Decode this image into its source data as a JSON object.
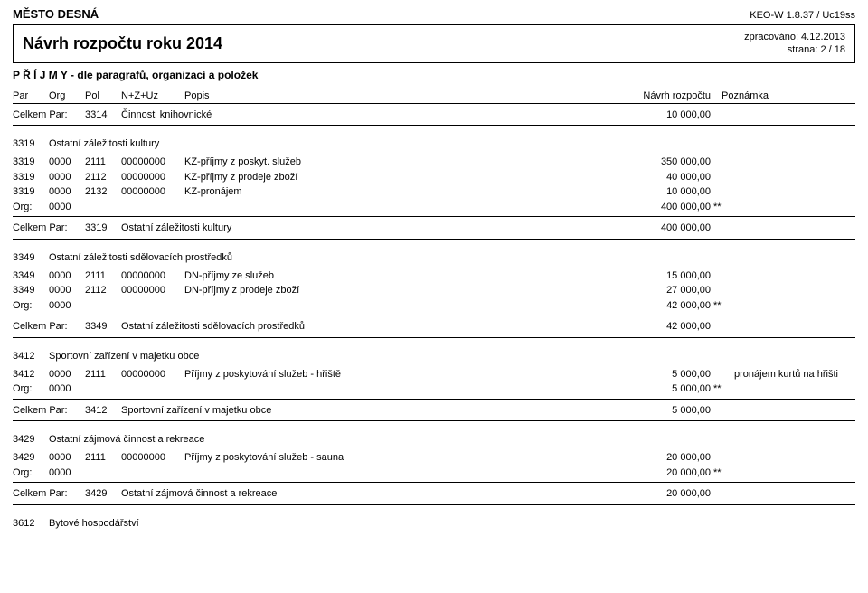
{
  "header": {
    "city": "MĚSTO DESNÁ",
    "app_id": "KEO-W 1.8.37 / Uc19ss"
  },
  "title_box": {
    "title": "Návrh rozpočtu roku 2014",
    "processed": "zpracováno: 4.12.2013",
    "page": "strana: 2 / 18"
  },
  "subtitle": "P Ř Í J M Y - dle paragrafů, organizací a položek",
  "col_headers": {
    "par": "Par",
    "org": "Org",
    "pol": "Pol",
    "nzuz": "N+Z+Uz",
    "popis": "Popis",
    "navrh": "Návrh rozpočtu",
    "pozn": "Poznámka"
  },
  "top_sum": {
    "pre": "Celkem Par:",
    "code": "3314",
    "txt": "Činnosti knihovnické",
    "amount": "10 000,00"
  },
  "sections": [
    {
      "code": "3319",
      "title": "Ostatní záležitosti kultury",
      "rows": [
        {
          "par": "3319",
          "org": "0000",
          "pol": "2111",
          "nzuz": "00000000",
          "popis": "KZ-příjmy z poskyt. služeb",
          "amount": "350 000,00",
          "stars": "",
          "note": ""
        },
        {
          "par": "3319",
          "org": "0000",
          "pol": "2112",
          "nzuz": "00000000",
          "popis": "KZ-příjmy z prodeje zboží",
          "amount": "40 000,00",
          "stars": "",
          "note": ""
        },
        {
          "par": "3319",
          "org": "0000",
          "pol": "2132",
          "nzuz": "00000000",
          "popis": "KZ-pronájem",
          "amount": "10 000,00",
          "stars": "",
          "note": ""
        },
        {
          "par": "Org:",
          "org": "0000",
          "pol": "",
          "nzuz": "",
          "popis": "",
          "amount": "400 000,00",
          "stars": "**",
          "note": ""
        }
      ],
      "sum": {
        "pre": "Celkem Par:",
        "code": "3319",
        "txt": "Ostatní záležitosti kultury",
        "amount": "400 000,00"
      }
    },
    {
      "code": "3349",
      "title": "Ostatní záležitosti sdělovacích prostředků",
      "rows": [
        {
          "par": "3349",
          "org": "0000",
          "pol": "2111",
          "nzuz": "00000000",
          "popis": "DN-příjmy ze služeb",
          "amount": "15 000,00",
          "stars": "",
          "note": ""
        },
        {
          "par": "3349",
          "org": "0000",
          "pol": "2112",
          "nzuz": "00000000",
          "popis": "DN-příjmy z prodeje zboží",
          "amount": "27 000,00",
          "stars": "",
          "note": ""
        },
        {
          "par": "Org:",
          "org": "0000",
          "pol": "",
          "nzuz": "",
          "popis": "",
          "amount": "42 000,00",
          "stars": "**",
          "note": ""
        }
      ],
      "sum": {
        "pre": "Celkem Par:",
        "code": "3349",
        "txt": "Ostatní záležitosti sdělovacích prostředků",
        "amount": "42 000,00"
      }
    },
    {
      "code": "3412",
      "title": "Sportovní zařízení v majetku obce",
      "rows": [
        {
          "par": "3412",
          "org": "0000",
          "pol": "2111",
          "nzuz": "00000000",
          "popis": "Příjmy z poskytování služeb - hřiště",
          "amount": "5 000,00",
          "stars": "",
          "note": "pronájem kurtů na hřišti"
        },
        {
          "par": "Org:",
          "org": "0000",
          "pol": "",
          "nzuz": "",
          "popis": "",
          "amount": "5 000,00",
          "stars": "**",
          "note": ""
        }
      ],
      "sum": {
        "pre": "Celkem Par:",
        "code": "3412",
        "txt": "Sportovní zařízení v majetku obce",
        "amount": "5 000,00"
      }
    },
    {
      "code": "3429",
      "title": "Ostatní zájmová činnost a rekreace",
      "rows": [
        {
          "par": "3429",
          "org": "0000",
          "pol": "2111",
          "nzuz": "00000000",
          "popis": "Příjmy z poskytování služeb - sauna",
          "amount": "20 000,00",
          "stars": "",
          "note": ""
        },
        {
          "par": "Org:",
          "org": "0000",
          "pol": "",
          "nzuz": "",
          "popis": "",
          "amount": "20 000,00",
          "stars": "**",
          "note": ""
        }
      ],
      "sum": {
        "pre": "Celkem Par:",
        "code": "3429",
        "txt": "Ostatní zájmová činnost a rekreace",
        "amount": "20 000,00"
      }
    }
  ],
  "footer_section": {
    "code": "3612",
    "title": "Bytové hospodářství"
  }
}
